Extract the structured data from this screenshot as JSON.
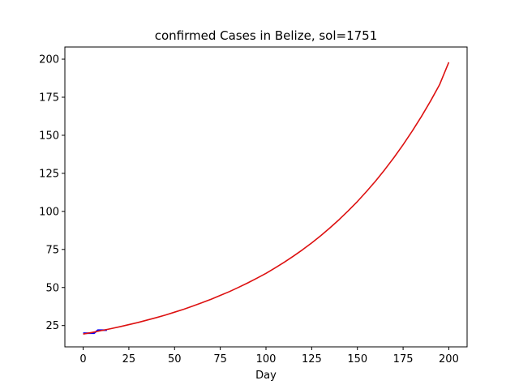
{
  "chart_data": {
    "type": "line",
    "title": "confirmed Cases in Belize, sol=1751",
    "xlabel": "Day",
    "ylabel": "",
    "xlim": [
      -10,
      210
    ],
    "ylim": [
      11,
      208
    ],
    "x_ticks": [
      0,
      25,
      50,
      75,
      100,
      125,
      150,
      175,
      200
    ],
    "y_ticks": [
      25,
      50,
      75,
      100,
      125,
      150,
      175,
      200
    ],
    "grid": false,
    "series": [
      {
        "color": "#0000ff",
        "linewidth": 2,
        "x": [
          0,
          1,
          2,
          3,
          4,
          5,
          6,
          7,
          8,
          9,
          10,
          11,
          12,
          13
        ],
        "y": [
          20,
          20,
          20,
          20,
          20,
          20,
          20,
          21,
          22,
          22,
          22,
          22,
          22,
          22
        ]
      },
      {
        "color": "#dd1111",
        "linewidth": 1.6,
        "x": [
          0,
          5,
          10,
          15,
          20,
          25,
          30,
          35,
          40,
          45,
          50,
          55,
          60,
          65,
          70,
          75,
          80,
          85,
          90,
          95,
          100,
          105,
          110,
          115,
          120,
          125,
          130,
          135,
          140,
          145,
          150,
          155,
          160,
          165,
          170,
          175,
          180,
          185,
          190,
          195,
          200
        ],
        "y": [
          19.4,
          20.5,
          21.7,
          22.9,
          24.2,
          25.6,
          27.0,
          28.6,
          30.2,
          31.9,
          33.8,
          35.7,
          37.8,
          40.0,
          42.3,
          44.8,
          47.3,
          50.1,
          53.0,
          56.1,
          59.3,
          62.9,
          66.6,
          70.6,
          74.8,
          79.3,
          84.1,
          89.2,
          94.6,
          100.4,
          106.5,
          113.1,
          120.0,
          127.5,
          135.4,
          143.8,
          152.8,
          162.3,
          172.5,
          183.4,
          198.0
        ]
      }
    ]
  }
}
